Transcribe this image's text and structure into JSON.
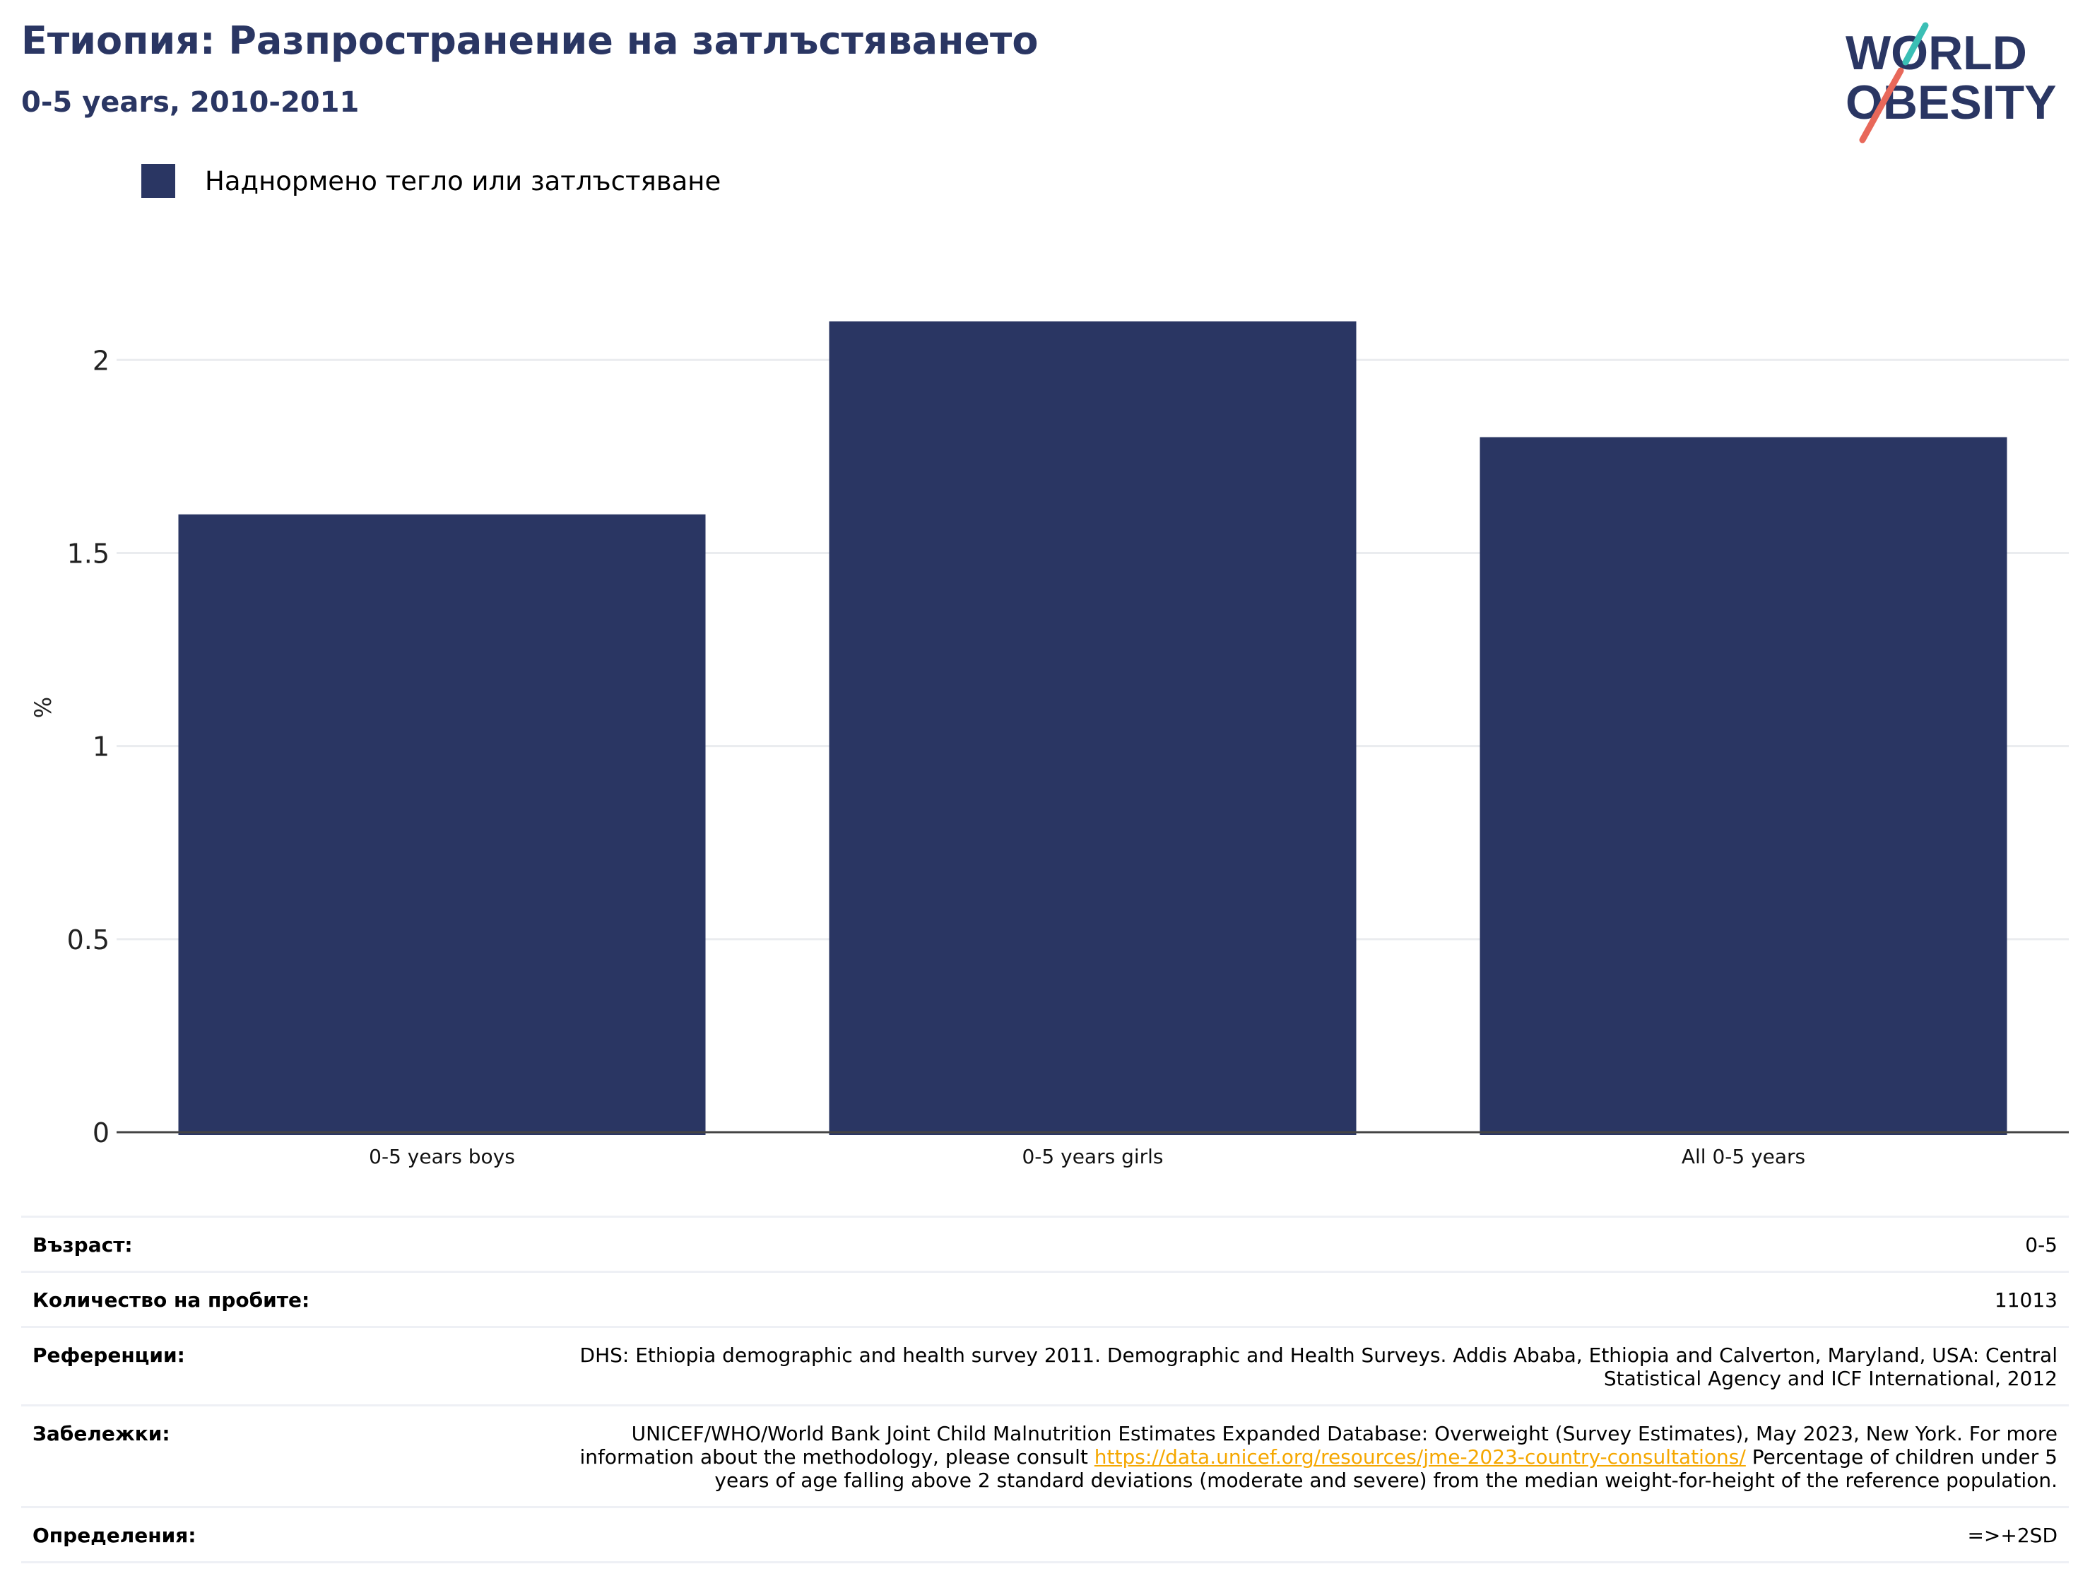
{
  "header": {
    "title": "Етиопия: Разпространение на затлъстяването",
    "subtitle": "0-5 years, 2010-2011"
  },
  "logo": {
    "line1": "WORLD",
    "line2": "OBESITY",
    "colors": {
      "text": "#2a3663",
      "slash_top": "#3bbfb5",
      "slash_bottom": "#e8685a"
    }
  },
  "colors": {
    "bar": "#2a3663",
    "grid": "#eaecef",
    "axis": "#444444",
    "link": "#f5a700"
  },
  "chart_data": {
    "type": "bar",
    "categories": [
      "0-5 years boys",
      "0-5 years girls",
      "All 0-5 years"
    ],
    "series": [
      {
        "name": "Наднормено тегло или затлъстяване",
        "values": [
          1.6,
          2.1,
          1.8
        ]
      }
    ],
    "ylabel": "%",
    "xlabel": "",
    "ylim": [
      0,
      2.2
    ],
    "yticks": [
      0,
      0.5,
      1,
      1.5,
      2
    ],
    "ytick_labels": [
      "0",
      "0.5",
      "1",
      "1.5",
      "2"
    ],
    "grid": true,
    "legend_position": "top-left"
  },
  "meta": {
    "age": {
      "label": "Възраст:",
      "value": "0-5"
    },
    "sample_size": {
      "label": "Количество на пробите:",
      "value": "11013"
    },
    "references": {
      "label": "Референции:",
      "value": "DHS: Ethiopia demographic and health survey 2011. Demographic and Health Surveys. Addis Ababa, Ethiopia and Calverton, Maryland, USA: Central Statistical Agency and ICF International, 2012"
    },
    "notes": {
      "label": "Забележки:",
      "text_before": "UNICEF/WHO/World Bank Joint Child Malnutrition Estimates Expanded Database: Overweight (Survey Estimates), May 2023, New York. For more information about the methodology, please consult ",
      "link": "https://data.unicef.org/resources/jme-2023-country-consultations/",
      "text_after": " Percentage of children under 5 years of age falling above 2 standard deviations (moderate and severe) from the median weight-for-height of the reference population."
    },
    "definitions": {
      "label": "Определения:",
      "value": "=>+2SD"
    }
  }
}
